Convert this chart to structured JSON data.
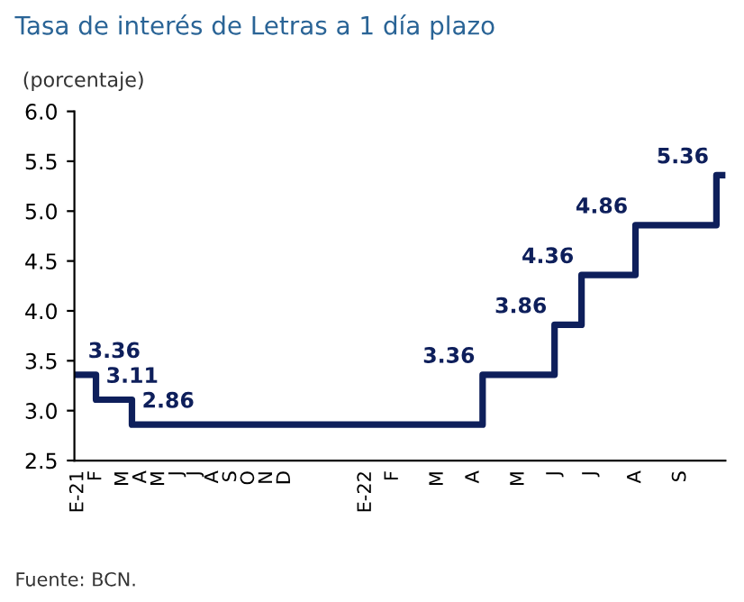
{
  "chart_data": {
    "type": "step",
    "title": "Tasa de interés de Letras a 1 día plazo",
    "ylabel": "(porcentaje)",
    "categories": [
      "E-21",
      null,
      "F",
      null,
      null,
      "M",
      null,
      "A",
      null,
      "M",
      null,
      "J",
      null,
      "J",
      null,
      "A",
      null,
      "S",
      null,
      "O",
      null,
      "N",
      null,
      "D",
      null,
      null,
      null,
      null,
      null,
      null,
      null,
      null,
      "E-22",
      null,
      null,
      "F",
      null,
      null,
      null,
      null,
      "M",
      null,
      null,
      null,
      "A",
      null,
      null,
      null,
      null,
      "M",
      null,
      null,
      null,
      "J",
      null,
      null,
      null,
      "J",
      null,
      null,
      null,
      null,
      "A",
      null,
      null,
      null,
      null,
      "S",
      null,
      null,
      null,
      null,
      null
    ],
    "series": [
      {
        "color": "#0e1f5b",
        "values": [
          3.36,
          3.36,
          3.11,
          3.11,
          3.11,
          3.11,
          2.86,
          2.86,
          2.86,
          2.86,
          2.86,
          2.86,
          2.86,
          2.86,
          2.86,
          2.86,
          2.86,
          2.86,
          2.86,
          2.86,
          2.86,
          2.86,
          2.86,
          2.86,
          2.86,
          2.86,
          2.86,
          2.86,
          2.86,
          2.86,
          2.86,
          2.86,
          2.86,
          2.86,
          2.86,
          2.86,
          2.86,
          2.86,
          2.86,
          2.86,
          2.86,
          2.86,
          2.86,
          2.86,
          2.86,
          3.36,
          3.36,
          3.36,
          3.36,
          3.36,
          3.36,
          3.36,
          3.36,
          3.86,
          3.86,
          3.86,
          4.36,
          4.36,
          4.36,
          4.36,
          4.36,
          4.36,
          4.86,
          4.86,
          4.86,
          4.86,
          4.86,
          4.86,
          4.86,
          4.86,
          4.86,
          5.36,
          5.36
        ],
        "value_labels": [
          "3.36",
          null,
          "3.11",
          null,
          null,
          null,
          "2.86",
          null,
          null,
          null,
          null,
          null,
          null,
          null,
          null,
          null,
          null,
          null,
          null,
          null,
          null,
          null,
          null,
          null,
          null,
          null,
          null,
          null,
          null,
          null,
          null,
          null,
          null,
          null,
          null,
          null,
          null,
          null,
          null,
          null,
          null,
          null,
          null,
          null,
          null,
          "3.36",
          null,
          null,
          null,
          null,
          null,
          null,
          null,
          "3.86",
          null,
          null,
          "4.36",
          null,
          null,
          null,
          null,
          null,
          "4.86",
          null,
          null,
          null,
          null,
          null,
          null,
          null,
          null,
          "5.36",
          null
        ]
      }
    ],
    "ylim": [
      2.5,
      6.0
    ],
    "yticks": [
      {
        "value": 2.5,
        "label": "2.5"
      },
      {
        "value": 3.0,
        "label": "3.0"
      },
      {
        "value": 3.5,
        "label": "3.5"
      },
      {
        "value": 4.0,
        "label": "4.0"
      },
      {
        "value": 4.5,
        "label": "4.5"
      },
      {
        "value": 5.0,
        "label": "5.0"
      },
      {
        "value": 5.5,
        "label": "5.5"
      },
      {
        "value": 6.0,
        "label": "6.0"
      }
    ],
    "grid": false,
    "annotations": [
      "Fuente: BCN."
    ]
  }
}
